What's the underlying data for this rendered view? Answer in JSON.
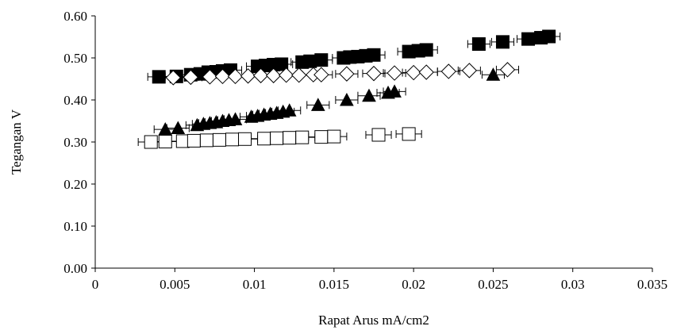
{
  "chart_data": {
    "type": "scatter",
    "title": "",
    "xlabel": "Rapat Arus mA/cm2",
    "ylabel": "Tegangan V",
    "xlim": [
      0,
      0.035
    ],
    "ylim": [
      0,
      0.6
    ],
    "x_ticks": [
      0,
      0.005,
      0.01,
      0.015,
      0.02,
      0.025,
      0.03,
      0.035
    ],
    "x_tick_labels": [
      "0",
      "0.005",
      "0.01",
      "0.015",
      "0.02",
      "0.025",
      "0.03",
      "0.035"
    ],
    "y_ticks": [
      0,
      0.1,
      0.2,
      0.3,
      0.4,
      0.5,
      0.6
    ],
    "y_tick_labels": [
      "0.00",
      "0.10",
      "0.20",
      "0.30",
      "0.40",
      "0.50",
      "0.60"
    ],
    "grid": false,
    "legend": "none",
    "error_bars": "horizontal",
    "series": [
      {
        "marker": "square-filled",
        "color": "#000000",
        "xerr": 0.0007,
        "points": [
          [
            0.004,
            0.455
          ],
          [
            0.0051,
            0.456
          ],
          [
            0.006,
            0.46
          ],
          [
            0.0066,
            0.462
          ],
          [
            0.0071,
            0.466
          ],
          [
            0.0076,
            0.467
          ],
          [
            0.008,
            0.469
          ],
          [
            0.0085,
            0.471
          ],
          [
            0.0102,
            0.48
          ],
          [
            0.0107,
            0.482
          ],
          [
            0.0112,
            0.484
          ],
          [
            0.0117,
            0.485
          ],
          [
            0.013,
            0.49
          ],
          [
            0.0135,
            0.492
          ],
          [
            0.0142,
            0.495
          ],
          [
            0.0156,
            0.5
          ],
          [
            0.016,
            0.502
          ],
          [
            0.0165,
            0.503
          ],
          [
            0.017,
            0.505
          ],
          [
            0.0175,
            0.507
          ],
          [
            0.0197,
            0.515
          ],
          [
            0.0203,
            0.517
          ],
          [
            0.0208,
            0.519
          ],
          [
            0.0241,
            0.533
          ],
          [
            0.0256,
            0.538
          ],
          [
            0.0272,
            0.545
          ],
          [
            0.028,
            0.548
          ],
          [
            0.0285,
            0.551
          ]
        ]
      },
      {
        "marker": "diamond-open",
        "color": "#000000",
        "xerr": 0.0007,
        "points": [
          [
            0.0049,
            0.453
          ],
          [
            0.006,
            0.454
          ],
          [
            0.0072,
            0.455
          ],
          [
            0.008,
            0.456
          ],
          [
            0.0088,
            0.456
          ],
          [
            0.0096,
            0.457
          ],
          [
            0.0104,
            0.458
          ],
          [
            0.0112,
            0.458
          ],
          [
            0.012,
            0.459
          ],
          [
            0.0128,
            0.459
          ],
          [
            0.0137,
            0.46
          ],
          [
            0.0142,
            0.46
          ],
          [
            0.0158,
            0.462
          ],
          [
            0.0175,
            0.463
          ],
          [
            0.0188,
            0.464
          ],
          [
            0.02,
            0.465
          ],
          [
            0.0208,
            0.466
          ],
          [
            0.0222,
            0.468
          ],
          [
            0.0235,
            0.47
          ],
          [
            0.0259,
            0.472
          ]
        ]
      },
      {
        "marker": "triangle-filled",
        "color": "#000000",
        "xerr": 0.0007,
        "points": [
          [
            0.0044,
            0.33
          ],
          [
            0.0052,
            0.333
          ],
          [
            0.0064,
            0.34
          ],
          [
            0.0068,
            0.343
          ],
          [
            0.0072,
            0.345
          ],
          [
            0.0076,
            0.347
          ],
          [
            0.008,
            0.35
          ],
          [
            0.0084,
            0.352
          ],
          [
            0.0088,
            0.354
          ],
          [
            0.0098,
            0.36
          ],
          [
            0.0102,
            0.362
          ],
          [
            0.0106,
            0.365
          ],
          [
            0.011,
            0.367
          ],
          [
            0.0114,
            0.369
          ],
          [
            0.0118,
            0.372
          ],
          [
            0.0122,
            0.375
          ],
          [
            0.014,
            0.388
          ],
          [
            0.0158,
            0.4
          ],
          [
            0.0172,
            0.41
          ],
          [
            0.0184,
            0.417
          ],
          [
            0.0188,
            0.42
          ],
          [
            0.025,
            0.46
          ]
        ]
      },
      {
        "marker": "square-open",
        "color": "#000000",
        "xerr": 0.0008,
        "points": [
          [
            0.0035,
            0.3
          ],
          [
            0.0044,
            0.301
          ],
          [
            0.0055,
            0.302
          ],
          [
            0.0062,
            0.303
          ],
          [
            0.007,
            0.304
          ],
          [
            0.0078,
            0.305
          ],
          [
            0.0086,
            0.306
          ],
          [
            0.0094,
            0.307
          ],
          [
            0.0106,
            0.308
          ],
          [
            0.0114,
            0.309
          ],
          [
            0.0122,
            0.31
          ],
          [
            0.013,
            0.311
          ],
          [
            0.0142,
            0.312
          ],
          [
            0.015,
            0.313
          ],
          [
            0.0178,
            0.317
          ],
          [
            0.0197,
            0.319
          ]
        ]
      }
    ]
  }
}
